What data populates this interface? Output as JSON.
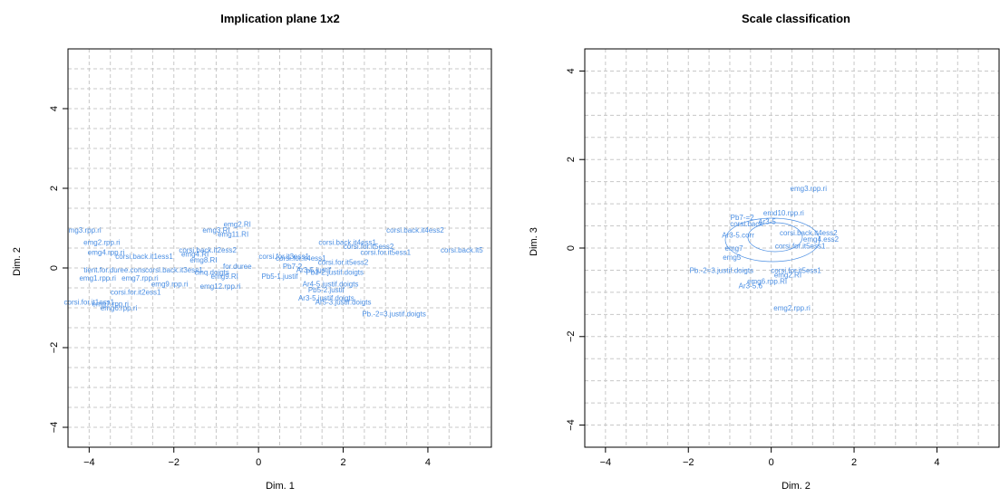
{
  "colors": {
    "points": "#4a8ee3",
    "grid": "#c8c8c8",
    "frame": "#000000"
  },
  "chart_data": [
    {
      "type": "scatter",
      "title": "Implication plane 1x2",
      "xlabel": "Dim. 1",
      "ylabel": "Dim. 2",
      "xlim": [
        -4.5,
        5.5
      ],
      "ylim": [
        -4.5,
        5.5
      ],
      "xticks": [
        -4,
        -2,
        0,
        2,
        4
      ],
      "yticks": [
        -4,
        -2,
        0,
        2,
        4
      ],
      "grid": true,
      "points": [
        {
          "x": -4.1,
          "y": 0.95,
          "label": "mg3.rpp.ri"
        },
        {
          "x": -3.7,
          "y": 0.65,
          "label": "emg2.rpp.ri"
        },
        {
          "x": -3.6,
          "y": 0.4,
          "label": "emg4.rpp.ri"
        },
        {
          "x": -2.7,
          "y": 0.3,
          "label": "corsi.back.it1ess1"
        },
        {
          "x": -3.4,
          "y": -0.05,
          "label": "tient.for.duree.cons"
        },
        {
          "x": -2.8,
          "y": -0.25,
          "label": "emg7.rpp.ri"
        },
        {
          "x": -3.8,
          "y": -0.25,
          "label": "emg1.rpp.ri"
        },
        {
          "x": -2.9,
          "y": -0.6,
          "label": "corsi.for.it2ess1"
        },
        {
          "x": -4.0,
          "y": -0.85,
          "label": "corsi.for.it1ess1"
        },
        {
          "x": -3.5,
          "y": -0.9,
          "label": "emg7.rpp.ri"
        },
        {
          "x": -3.3,
          "y": -1.0,
          "label": "emg6.rpp.ri"
        },
        {
          "x": -1.5,
          "y": 0.35,
          "label": "emg4.RI"
        },
        {
          "x": -1.0,
          "y": 0.95,
          "label": "emg3.RI"
        },
        {
          "x": -0.5,
          "y": 1.1,
          "label": "emg2.RI"
        },
        {
          "x": -0.6,
          "y": 0.85,
          "label": "emg11.RI"
        },
        {
          "x": -1.2,
          "y": 0.45,
          "label": "corsi.back.it2ess2"
        },
        {
          "x": -1.3,
          "y": 0.2,
          "label": "emg8.RI"
        },
        {
          "x": -2.0,
          "y": -0.05,
          "label": "corsi.back.it3ess1"
        },
        {
          "x": -1.1,
          "y": -0.1,
          "label": "cinq.doigts"
        },
        {
          "x": -0.8,
          "y": -0.2,
          "label": "emg9.RI"
        },
        {
          "x": -2.1,
          "y": -0.4,
          "label": "emg9.rpp.ri"
        },
        {
          "x": -0.9,
          "y": -0.45,
          "label": "emg12.rpp.ri"
        },
        {
          "x": -0.5,
          "y": 0.05,
          "label": "for.duree"
        },
        {
          "x": 0.6,
          "y": 0.3,
          "label": "corsi.for.it3ess1"
        },
        {
          "x": 1.0,
          "y": 0.25,
          "label": "corsi.for.it4ess1"
        },
        {
          "x": 0.8,
          "y": 0.05,
          "label": "Pb7-2"
        },
        {
          "x": 1.3,
          "y": -0.05,
          "label": "Ar3-5.justif"
        },
        {
          "x": 0.5,
          "y": -0.2,
          "label": "Pb5-1.justif"
        },
        {
          "x": 1.7,
          "y": -0.4,
          "label": "Ar4-5.justif.doigts"
        },
        {
          "x": 1.8,
          "y": -0.1,
          "label": "Pb3-2.justif.doigts"
        },
        {
          "x": 2.0,
          "y": 0.15,
          "label": "corsi.for.it5ess2"
        },
        {
          "x": 2.1,
          "y": 0.65,
          "label": "corsi.back.it4ess1"
        },
        {
          "x": 3.0,
          "y": 0.4,
          "label": "corsi.for.it5ess1"
        },
        {
          "x": 2.6,
          "y": 0.55,
          "label": "corsi.for.it5ess2"
        },
        {
          "x": 3.7,
          "y": 0.95,
          "label": "corsi.back.it4ess2"
        },
        {
          "x": 4.8,
          "y": 0.45,
          "label": "corsi.back.it5"
        },
        {
          "x": 1.6,
          "y": -0.55,
          "label": "Pb5-2.justif"
        },
        {
          "x": 1.6,
          "y": -0.75,
          "label": "Ar3-5.justif.doigts"
        },
        {
          "x": 2.0,
          "y": -0.85,
          "label": "Ar5-3.justif.doigts"
        },
        {
          "x": 3.2,
          "y": -1.15,
          "label": "Pb.-2=3.justif.doigts"
        }
      ]
    },
    {
      "type": "scatter",
      "title": "Scale classification",
      "xlabel": "Dim. 2",
      "ylabel": "Dim. 3",
      "xlim": [
        -4.5,
        5.5
      ],
      "ylim": [
        -4.5,
        4.5
      ],
      "xticks": [
        -4,
        -2,
        0,
        2,
        4
      ],
      "yticks": [
        -4,
        -2,
        0,
        2,
        4
      ],
      "grid": true,
      "points": [
        {
          "x": 0.9,
          "y": 1.35,
          "label": "emg3.rpp.ri"
        },
        {
          "x": 0.3,
          "y": 0.8,
          "label": "emd10.rpp.ri"
        },
        {
          "x": -0.7,
          "y": 0.7,
          "label": "Pb7-=2"
        },
        {
          "x": -0.1,
          "y": 0.6,
          "label": "Ar3-5"
        },
        {
          "x": -0.6,
          "y": 0.55,
          "label": "corsi.back"
        },
        {
          "x": 0.9,
          "y": 0.35,
          "label": "corsi.back.it4ess2"
        },
        {
          "x": 1.2,
          "y": 0.2,
          "label": "emg4.ess2"
        },
        {
          "x": -0.8,
          "y": 0.3,
          "label": "Ar3-5.corr"
        },
        {
          "x": 0.7,
          "y": 0.05,
          "label": "corsi.for.it5ess1"
        },
        {
          "x": -0.9,
          "y": 0.0,
          "label": "emg7"
        },
        {
          "x": -0.95,
          "y": -0.2,
          "label": "emg5"
        },
        {
          "x": -1.2,
          "y": -0.5,
          "label": "Pb.-2=3.justif.doigts"
        },
        {
          "x": 0.6,
          "y": -0.5,
          "label": "corsi.for.it5ess1"
        },
        {
          "x": 0.4,
          "y": -0.6,
          "label": "emg2.RI"
        },
        {
          "x": -0.1,
          "y": -0.75,
          "label": "emg6.rpp.RI"
        },
        {
          "x": -0.5,
          "y": -0.85,
          "label": "Ar3-5.6"
        },
        {
          "x": 0.5,
          "y": -1.35,
          "label": "emg2.rpp.ri"
        }
      ]
    }
  ]
}
